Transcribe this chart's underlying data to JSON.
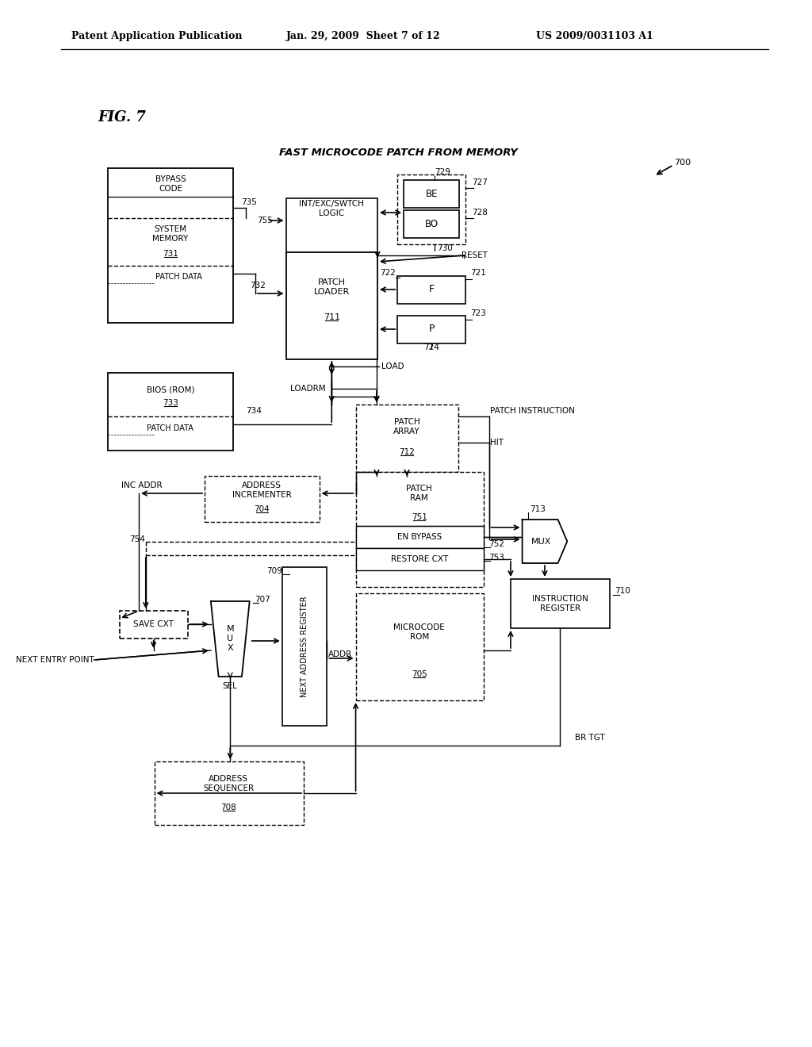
{
  "header_left": "Patent Application Publication",
  "header_mid": "Jan. 29, 2009  Sheet 7 of 12",
  "header_right": "US 2009/0031103 A1",
  "fig_label": "FIG. 7",
  "diagram_title": "FAST MICROCODE PATCH FROM MEMORY",
  "bg_color": "#ffffff"
}
